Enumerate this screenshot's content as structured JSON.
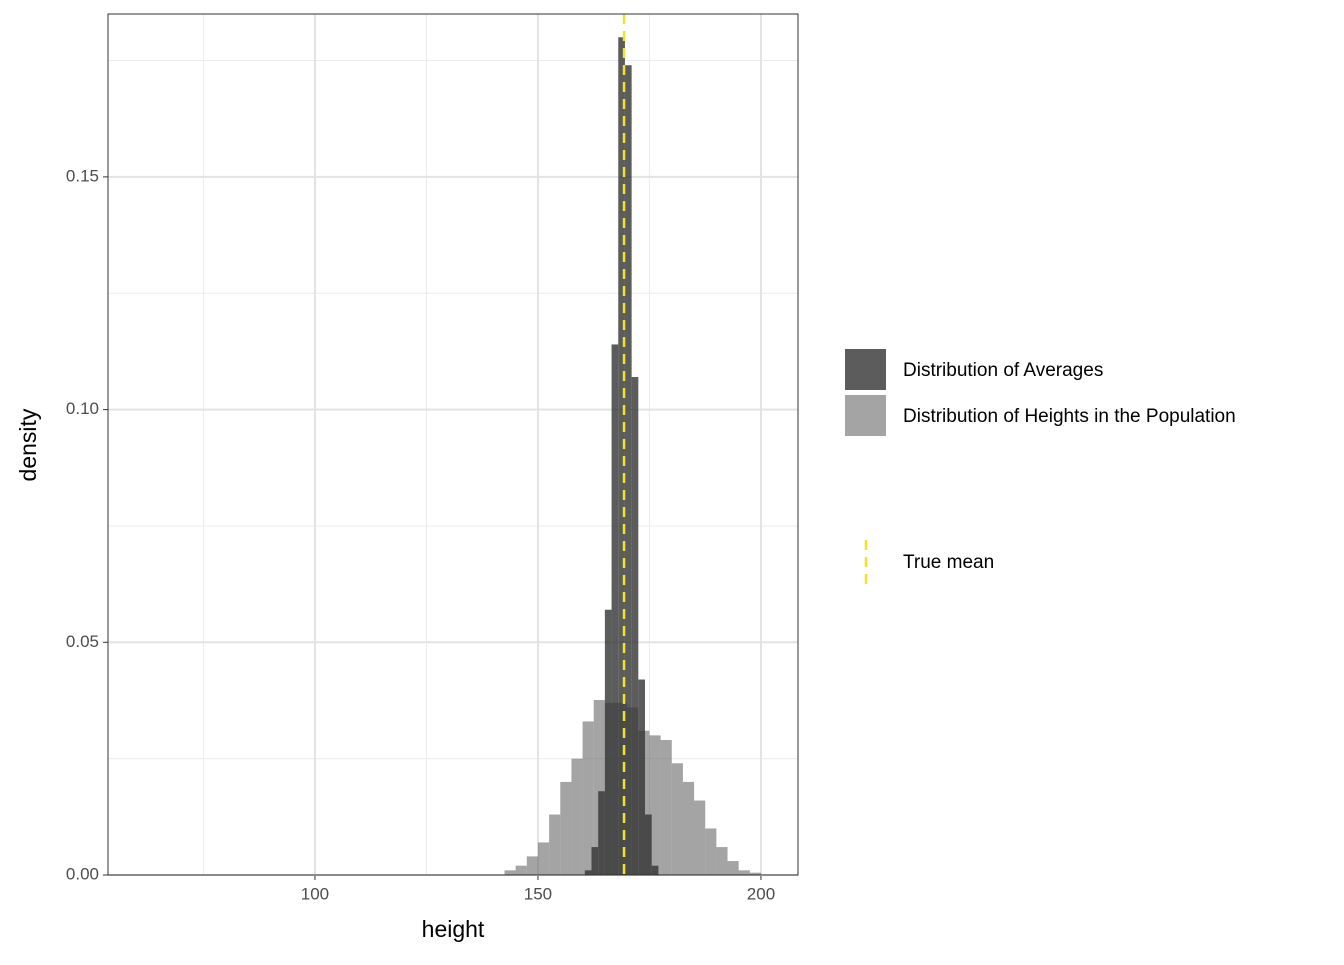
{
  "chart_data": {
    "type": "histogram",
    "xlabel": "height",
    "ylabel": "density",
    "series": [
      {
        "name": "Distribution of Averages",
        "color": "#333333",
        "opacity": 0.8,
        "bins": [
          160.5,
          162,
          163.5,
          165,
          166.5,
          168,
          169.5,
          171,
          172.5,
          174,
          175.5,
          177
        ],
        "values": [
          0.001,
          0.006,
          0.018,
          0.057,
          0.114,
          0.18,
          0.174,
          0.107,
          0.042,
          0.013,
          0.002
        ]
      },
      {
        "name": "Distribution of Heights in the Population",
        "color": "#595959",
        "opacity": 0.55,
        "bins": [
          142.5,
          145,
          147.5,
          150,
          152.5,
          155,
          157.5,
          160,
          162.5,
          165,
          167.5,
          170,
          172.5,
          175,
          177.5,
          180,
          182.5,
          185,
          187.5,
          190,
          192.5,
          195,
          197.5,
          200
        ],
        "values": [
          0.001,
          0.002,
          0.004,
          0.007,
          0.013,
          0.02,
          0.025,
          0.033,
          0.0376,
          0.037,
          0.037,
          0.036,
          0.031,
          0.03,
          0.029,
          0.024,
          0.02,
          0.016,
          0.01,
          0.006,
          0.003,
          0.001,
          0.0005
        ]
      }
    ],
    "vline": {
      "name": "True mean",
      "x": 169.3,
      "color": "#f5e125"
    },
    "xlim": [
      53.6,
      208.3
    ],
    "xticks": [
      100,
      150,
      200
    ],
    "ylim": [
      0,
      0.185
    ],
    "yticks": [
      {
        "value": 0,
        "label": "0.00"
      },
      {
        "value": 0.05,
        "label": "0.05"
      },
      {
        "value": 0.1,
        "label": "0.10"
      },
      {
        "value": 0.15,
        "label": "0.15"
      }
    ],
    "grid": true
  }
}
